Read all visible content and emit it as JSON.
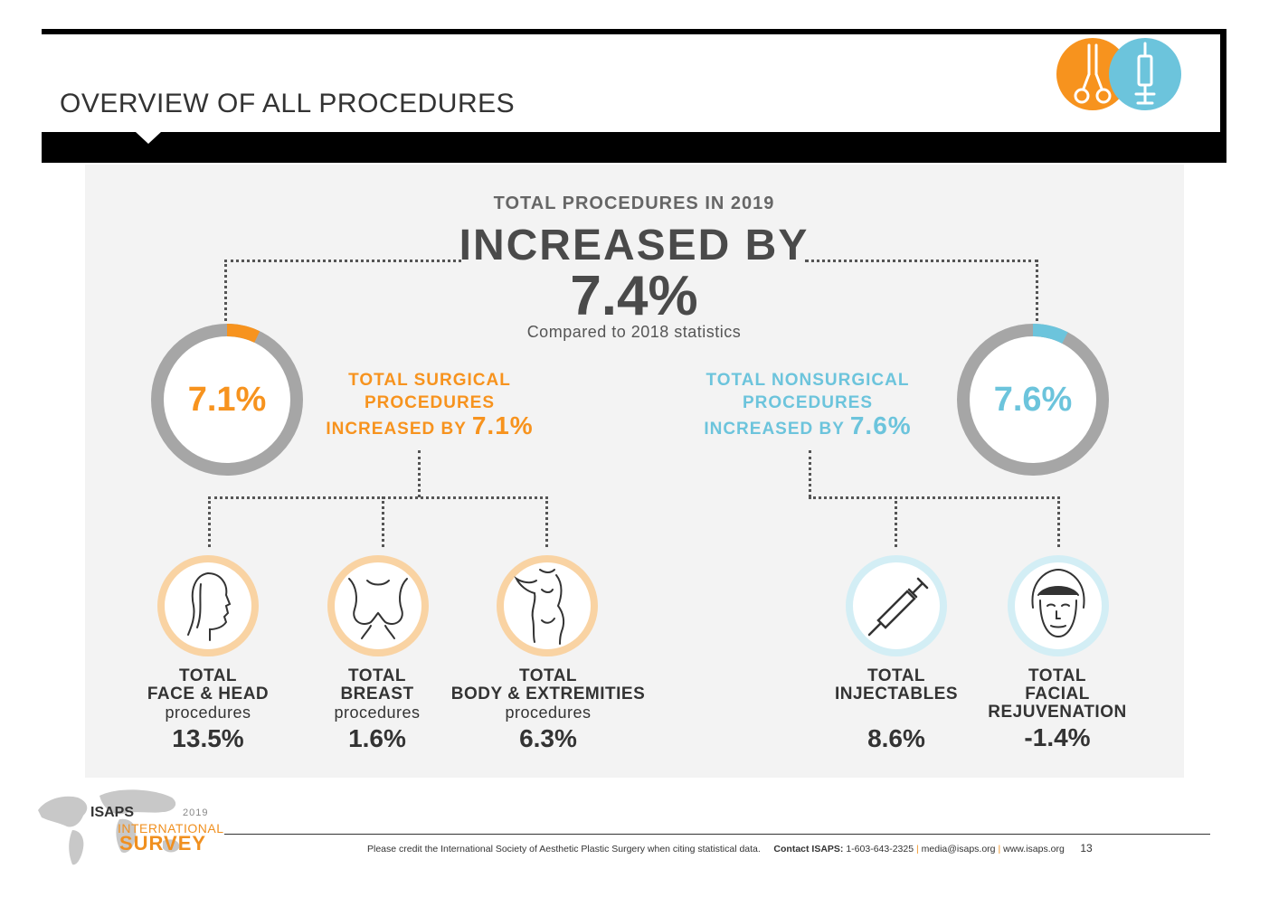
{
  "header": {
    "title": "OVERVIEW OF ALL PROCEDURES"
  },
  "summary": {
    "subtitle": "TOTAL PROCEDURES IN 2019",
    "headline": "INCREASED BY",
    "percent": "7.4%",
    "note": "Compared to 2018 statistics"
  },
  "surgical": {
    "ring_label": "7.1%",
    "ring_fraction": 0.071,
    "title_line1": "TOTAL SURGICAL",
    "title_line2": "PROCEDURES",
    "title_line3": "INCREASED BY",
    "title_pct": "7.1%",
    "color": "#f7931e"
  },
  "nonsurgical": {
    "ring_label": "7.6%",
    "ring_fraction": 0.076,
    "title_line1": "TOTAL NONSURGICAL",
    "title_line2": "PROCEDURES",
    "title_line3": "INCREASED BY",
    "title_pct": "7.6%",
    "color": "#6cc4dc"
  },
  "categories": {
    "face": {
      "line1": "TOTAL",
      "line2": "FACE & HEAD",
      "line3": "procedures",
      "value": "13.5%"
    },
    "breast": {
      "line1": "TOTAL",
      "line2": "BREAST",
      "line3": "procedures",
      "value": "1.6%"
    },
    "body": {
      "line1": "TOTAL",
      "line2": "BODY & EXTREMITIES",
      "line3": "procedures",
      "value": "6.3%"
    },
    "injectables": {
      "line1": "TOTAL",
      "line2": "INJECTABLES",
      "value": "8.6%"
    },
    "facial": {
      "line1": "TOTAL",
      "line2": "FACIAL",
      "line3": "REJUVENATION",
      "value": "-1.4%"
    }
  },
  "footer": {
    "credit": "Please credit the International Society of Aesthetic Plastic Surgery when citing statistical data.",
    "contact_label": "Contact ISAPS:",
    "phone": "1-603-643-2325",
    "email": "media@isaps.org",
    "website": "www.isaps.org",
    "page_number": "13"
  },
  "logo": {
    "org": "ISAPS",
    "year": "2019",
    "line1": "INTERNATIONAL",
    "line2": "SURVEY"
  },
  "icons": {
    "header_left": "scissors-icon",
    "header_right": "syringe-icon"
  }
}
